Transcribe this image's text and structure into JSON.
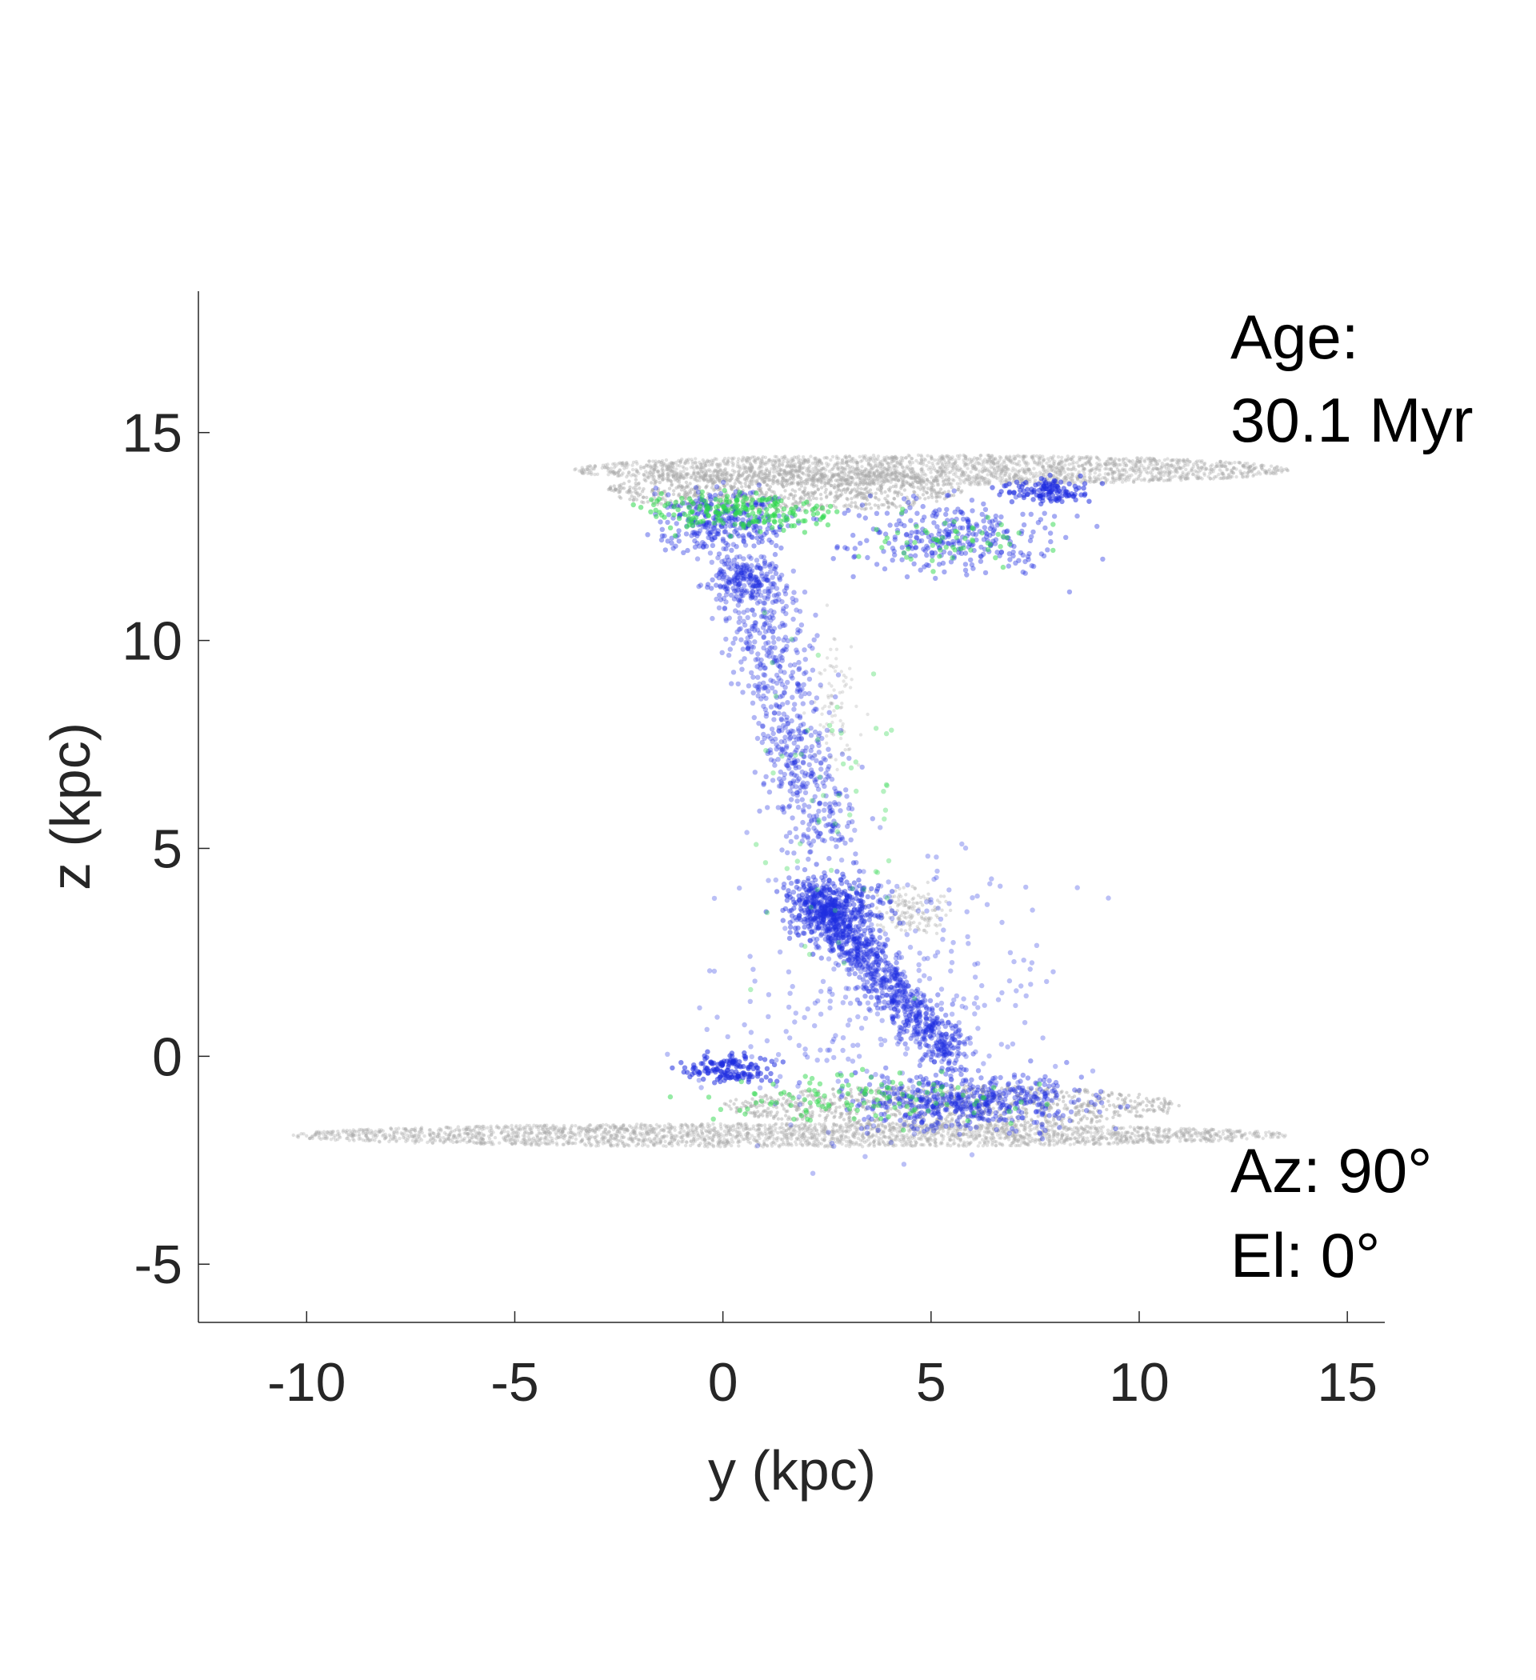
{
  "chart_data": {
    "type": "scatter",
    "xlabel": "y (kpc)",
    "ylabel": "z (kpc)",
    "xlim": [
      -12.6,
      15.9
    ],
    "ylim": [
      -6.4,
      18.4
    ],
    "xticks": [
      -10,
      -5,
      0,
      5,
      10,
      15
    ],
    "yticks": [
      -5,
      0,
      5,
      10,
      15
    ],
    "grid": false,
    "legend": "none",
    "annotations": {
      "age_label": "Age:",
      "age_value": "30.1 Myr",
      "azimuth": "Az: 90°",
      "elevation": "El: 0°"
    },
    "series": [
      {
        "color": "#a8a8a8",
        "components": [
          {
            "shape": "disk",
            "center": [
              1.6,
              -1.9
            ],
            "radius": [
              12.0,
              0.28
            ],
            "count": 2600,
            "opacity": 0.35
          },
          {
            "shape": "disk",
            "center": [
              5.5,
              -1.2
            ],
            "radius": [
              5.5,
              0.5
            ],
            "count": 900,
            "opacity": 0.45
          },
          {
            "shape": "disk",
            "center": [
              5.0,
              14.1
            ],
            "radius": [
              8.6,
              0.36
            ],
            "count": 2400,
            "opacity": 0.35
          },
          {
            "shape": "disk",
            "center": [
              1.5,
              13.6
            ],
            "radius": [
              4.3,
              0.5
            ],
            "count": 900,
            "opacity": 0.45
          },
          {
            "shape": "blob",
            "center": [
              4.5,
              3.5
            ],
            "radius": [
              0.8,
              0.5
            ],
            "count": 150,
            "opacity": 0.35
          },
          {
            "shape": "blob",
            "center": [
              2.7,
              8.5
            ],
            "radius": [
              0.5,
              1.5
            ],
            "count": 80,
            "opacity": 0.3
          }
        ]
      },
      {
        "color": "#1f2ee0",
        "components": [
          {
            "shape": "blob",
            "center": [
              0.0,
              12.9
            ],
            "radius": [
              1.5,
              0.7
            ],
            "count": 300,
            "opacity": 0.4
          },
          {
            "shape": "blob",
            "center": [
              5.5,
              12.5
            ],
            "radius": [
              2.2,
              0.8
            ],
            "count": 300,
            "opacity": 0.4
          },
          {
            "shape": "blob",
            "center": [
              7.8,
              13.6
            ],
            "radius": [
              0.9,
              0.25
            ],
            "count": 120,
            "opacity": 0.55
          },
          {
            "shape": "blob",
            "center": [
              0.5,
              11.5
            ],
            "radius": [
              0.8,
              0.5
            ],
            "count": 120,
            "opacity": 0.4
          },
          {
            "shape": "stream",
            "from": [
              0.5,
              12.0
            ],
            "to": [
              2.5,
              5.0
            ],
            "width": 1.0,
            "count": 700,
            "opacity": 0.35
          },
          {
            "shape": "stream",
            "from": [
              2.0,
              4.0
            ],
            "to": [
              5.5,
              0.0
            ],
            "width": 0.6,
            "count": 900,
            "opacity": 0.4
          },
          {
            "shape": "blob",
            "center": [
              2.7,
              3.6
            ],
            "radius": [
              1.2,
              0.7
            ],
            "count": 300,
            "opacity": 0.45
          },
          {
            "shape": "blob",
            "center": [
              6.0,
              -1.1
            ],
            "radius": [
              2.5,
              0.6
            ],
            "count": 500,
            "opacity": 0.4
          },
          {
            "shape": "blob",
            "center": [
              0.2,
              -0.3
            ],
            "radius": [
              1.0,
              0.3
            ],
            "count": 150,
            "opacity": 0.55
          },
          {
            "shape": "blob",
            "center": [
              4.0,
              1.5
            ],
            "radius": [
              3.5,
              3.0
            ],
            "count": 350,
            "opacity": 0.3
          }
        ]
      },
      {
        "color": "#2ed84c",
        "components": [
          {
            "shape": "blob",
            "center": [
              0.5,
              13.1
            ],
            "radius": [
              2.0,
              0.4
            ],
            "count": 200,
            "opacity": 0.55
          },
          {
            "shape": "blob",
            "center": [
              5.5,
              12.4
            ],
            "radius": [
              1.8,
              0.5
            ],
            "count": 60,
            "opacity": 0.5
          },
          {
            "shape": "blob",
            "center": [
              2.5,
              6.0
            ],
            "radius": [
              1.8,
              4.0
            ],
            "count": 60,
            "opacity": 0.35
          },
          {
            "shape": "blob",
            "center": [
              3.5,
              -1.0
            ],
            "radius": [
              3.5,
              0.6
            ],
            "count": 120,
            "opacity": 0.5
          }
        ]
      }
    ]
  }
}
